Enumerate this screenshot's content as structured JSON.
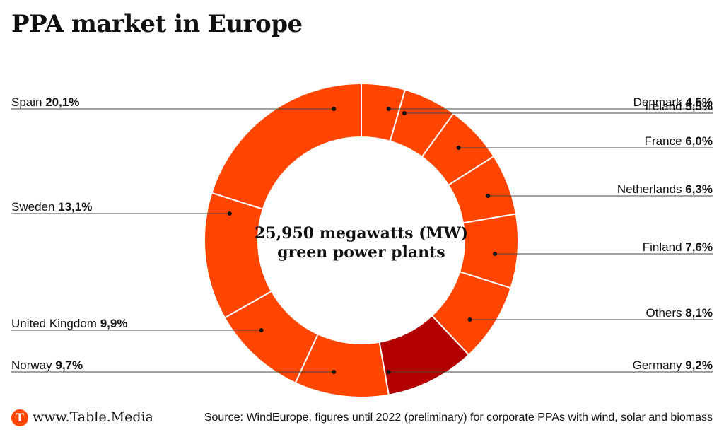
{
  "chart_data": {
    "type": "pie",
    "variant": "donut",
    "title": "PPA market in Europe",
    "center_label": [
      "25,950 megawatts (MW)",
      "green power plants"
    ],
    "start_at": "top",
    "direction": "clockwise",
    "slices": [
      {
        "label": "Denmark",
        "value_text": "4,5%",
        "value": 4.5,
        "color": "#ff4500",
        "side": "right"
      },
      {
        "label": "Ireland",
        "value_text": "5,5%",
        "value": 5.5,
        "color": "#ff4500",
        "side": "right"
      },
      {
        "label": "France",
        "value_text": "6,0%",
        "value": 6.0,
        "color": "#ff4500",
        "side": "right"
      },
      {
        "label": "Netherlands",
        "value_text": "6,3%",
        "value": 6.3,
        "color": "#ff4500",
        "side": "right"
      },
      {
        "label": "Finland",
        "value_text": "7,6%",
        "value": 7.6,
        "color": "#ff4500",
        "side": "right"
      },
      {
        "label": "Others",
        "value_text": "8,1%",
        "value": 8.1,
        "color": "#ff4500",
        "side": "right"
      },
      {
        "label": "Germany",
        "value_text": "9,2%",
        "value": 9.2,
        "color": "#b30000",
        "side": "right"
      },
      {
        "label": "Norway",
        "value_text": "9,7%",
        "value": 9.7,
        "color": "#ff4500",
        "side": "left"
      },
      {
        "label": "United Kingdom",
        "value_text": "9,9%",
        "value": 9.9,
        "color": "#ff4500",
        "side": "left"
      },
      {
        "label": "Sweden",
        "value_text": "13,1%",
        "value": 13.1,
        "color": "#ff4500",
        "side": "left"
      },
      {
        "label": "Spain",
        "value_text": "20,1%",
        "value": 20.1,
        "color": "#ff4500",
        "side": "left"
      }
    ]
  },
  "footer": {
    "logo_letter": "T",
    "brand": "www.Table.Media",
    "source": "Source: WindEurope, figures until 2022 (preliminary) for corporate PPAs with wind, solar and biomass"
  },
  "colors": {
    "accent": "#ff4500",
    "highlight": "#b30000",
    "text": "#111111",
    "leader_line": "#444444"
  }
}
